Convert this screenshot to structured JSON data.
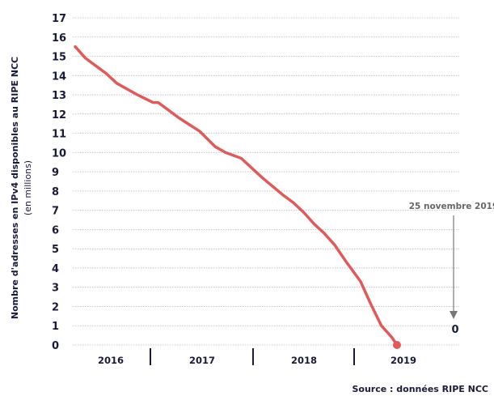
{
  "colors": {
    "line": "#e05a5a",
    "text": "#1a1a3a",
    "grid": "#b8b8c8",
    "annotation": "#777777"
  },
  "chart_data": {
    "type": "line",
    "title": "",
    "ylabel": "Nombre d'adresses en IPv4 disponibles au RIPE NCC",
    "ylabel_sub": "(en millions)",
    "xlabel": "",
    "ylim": [
      0,
      17
    ],
    "yticks": [
      "0",
      "1",
      "2",
      "3",
      "4",
      "5",
      "6",
      "7",
      "8",
      "9",
      "10",
      "11",
      "12",
      "13",
      "14",
      "15",
      "16",
      "17"
    ],
    "x_categories": [
      "2016",
      "2017",
      "2018",
      "2019"
    ],
    "grid": true,
    "series": [
      {
        "points": [
          [
            2016.0,
            15.5
          ],
          [
            2016.1,
            14.9
          ],
          [
            2016.3,
            14.1
          ],
          [
            2016.4,
            13.6
          ],
          [
            2016.6,
            13.0
          ],
          [
            2016.75,
            12.6
          ],
          [
            2016.8,
            12.6
          ],
          [
            2017.0,
            11.8
          ],
          [
            2017.2,
            11.1
          ],
          [
            2017.35,
            10.3
          ],
          [
            2017.45,
            10.0
          ],
          [
            2017.6,
            9.7
          ],
          [
            2017.8,
            8.7
          ],
          [
            2018.0,
            7.8
          ],
          [
            2018.1,
            7.4
          ],
          [
            2018.2,
            6.9
          ],
          [
            2018.3,
            6.3
          ],
          [
            2018.4,
            5.8
          ],
          [
            2018.5,
            5.2
          ],
          [
            2018.6,
            4.4
          ],
          [
            2018.75,
            3.3
          ],
          [
            2018.85,
            2.1
          ],
          [
            2018.95,
            1.0
          ],
          [
            2019.05,
            0.4
          ],
          [
            2019.1,
            0.0
          ]
        ]
      }
    ],
    "annotations": {
      "date_label": "25 novembre 2019",
      "end_value_label": "0"
    }
  },
  "source": "Source : données RIPE NCC"
}
